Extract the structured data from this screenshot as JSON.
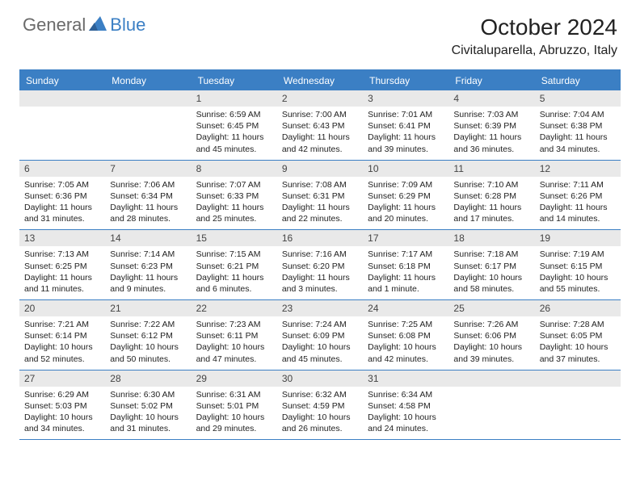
{
  "brand": {
    "part1": "General",
    "part2": "Blue"
  },
  "title": "October 2024",
  "location": "Civitaluparella, Abruzzo, Italy",
  "colors": {
    "accent": "#3b7fc4",
    "header_bg": "#3b7fc4",
    "header_text": "#ffffff",
    "daynum_bg": "#e9e9e9",
    "text": "#222222",
    "logo_gray": "#6a6a6a"
  },
  "day_names": [
    "Sunday",
    "Monday",
    "Tuesday",
    "Wednesday",
    "Thursday",
    "Friday",
    "Saturday"
  ],
  "weeks": [
    [
      {
        "n": "",
        "sr": "",
        "ss": "",
        "dl": ""
      },
      {
        "n": "",
        "sr": "",
        "ss": "",
        "dl": ""
      },
      {
        "n": "1",
        "sr": "Sunrise: 6:59 AM",
        "ss": "Sunset: 6:45 PM",
        "dl": "Daylight: 11 hours and 45 minutes."
      },
      {
        "n": "2",
        "sr": "Sunrise: 7:00 AM",
        "ss": "Sunset: 6:43 PM",
        "dl": "Daylight: 11 hours and 42 minutes."
      },
      {
        "n": "3",
        "sr": "Sunrise: 7:01 AM",
        "ss": "Sunset: 6:41 PM",
        "dl": "Daylight: 11 hours and 39 minutes."
      },
      {
        "n": "4",
        "sr": "Sunrise: 7:03 AM",
        "ss": "Sunset: 6:39 PM",
        "dl": "Daylight: 11 hours and 36 minutes."
      },
      {
        "n": "5",
        "sr": "Sunrise: 7:04 AM",
        "ss": "Sunset: 6:38 PM",
        "dl": "Daylight: 11 hours and 34 minutes."
      }
    ],
    [
      {
        "n": "6",
        "sr": "Sunrise: 7:05 AM",
        "ss": "Sunset: 6:36 PM",
        "dl": "Daylight: 11 hours and 31 minutes."
      },
      {
        "n": "7",
        "sr": "Sunrise: 7:06 AM",
        "ss": "Sunset: 6:34 PM",
        "dl": "Daylight: 11 hours and 28 minutes."
      },
      {
        "n": "8",
        "sr": "Sunrise: 7:07 AM",
        "ss": "Sunset: 6:33 PM",
        "dl": "Daylight: 11 hours and 25 minutes."
      },
      {
        "n": "9",
        "sr": "Sunrise: 7:08 AM",
        "ss": "Sunset: 6:31 PM",
        "dl": "Daylight: 11 hours and 22 minutes."
      },
      {
        "n": "10",
        "sr": "Sunrise: 7:09 AM",
        "ss": "Sunset: 6:29 PM",
        "dl": "Daylight: 11 hours and 20 minutes."
      },
      {
        "n": "11",
        "sr": "Sunrise: 7:10 AM",
        "ss": "Sunset: 6:28 PM",
        "dl": "Daylight: 11 hours and 17 minutes."
      },
      {
        "n": "12",
        "sr": "Sunrise: 7:11 AM",
        "ss": "Sunset: 6:26 PM",
        "dl": "Daylight: 11 hours and 14 minutes."
      }
    ],
    [
      {
        "n": "13",
        "sr": "Sunrise: 7:13 AM",
        "ss": "Sunset: 6:25 PM",
        "dl": "Daylight: 11 hours and 11 minutes."
      },
      {
        "n": "14",
        "sr": "Sunrise: 7:14 AM",
        "ss": "Sunset: 6:23 PM",
        "dl": "Daylight: 11 hours and 9 minutes."
      },
      {
        "n": "15",
        "sr": "Sunrise: 7:15 AM",
        "ss": "Sunset: 6:21 PM",
        "dl": "Daylight: 11 hours and 6 minutes."
      },
      {
        "n": "16",
        "sr": "Sunrise: 7:16 AM",
        "ss": "Sunset: 6:20 PM",
        "dl": "Daylight: 11 hours and 3 minutes."
      },
      {
        "n": "17",
        "sr": "Sunrise: 7:17 AM",
        "ss": "Sunset: 6:18 PM",
        "dl": "Daylight: 11 hours and 1 minute."
      },
      {
        "n": "18",
        "sr": "Sunrise: 7:18 AM",
        "ss": "Sunset: 6:17 PM",
        "dl": "Daylight: 10 hours and 58 minutes."
      },
      {
        "n": "19",
        "sr": "Sunrise: 7:19 AM",
        "ss": "Sunset: 6:15 PM",
        "dl": "Daylight: 10 hours and 55 minutes."
      }
    ],
    [
      {
        "n": "20",
        "sr": "Sunrise: 7:21 AM",
        "ss": "Sunset: 6:14 PM",
        "dl": "Daylight: 10 hours and 52 minutes."
      },
      {
        "n": "21",
        "sr": "Sunrise: 7:22 AM",
        "ss": "Sunset: 6:12 PM",
        "dl": "Daylight: 10 hours and 50 minutes."
      },
      {
        "n": "22",
        "sr": "Sunrise: 7:23 AM",
        "ss": "Sunset: 6:11 PM",
        "dl": "Daylight: 10 hours and 47 minutes."
      },
      {
        "n": "23",
        "sr": "Sunrise: 7:24 AM",
        "ss": "Sunset: 6:09 PM",
        "dl": "Daylight: 10 hours and 45 minutes."
      },
      {
        "n": "24",
        "sr": "Sunrise: 7:25 AM",
        "ss": "Sunset: 6:08 PM",
        "dl": "Daylight: 10 hours and 42 minutes."
      },
      {
        "n": "25",
        "sr": "Sunrise: 7:26 AM",
        "ss": "Sunset: 6:06 PM",
        "dl": "Daylight: 10 hours and 39 minutes."
      },
      {
        "n": "26",
        "sr": "Sunrise: 7:28 AM",
        "ss": "Sunset: 6:05 PM",
        "dl": "Daylight: 10 hours and 37 minutes."
      }
    ],
    [
      {
        "n": "27",
        "sr": "Sunrise: 6:29 AM",
        "ss": "Sunset: 5:03 PM",
        "dl": "Daylight: 10 hours and 34 minutes."
      },
      {
        "n": "28",
        "sr": "Sunrise: 6:30 AM",
        "ss": "Sunset: 5:02 PM",
        "dl": "Daylight: 10 hours and 31 minutes."
      },
      {
        "n": "29",
        "sr": "Sunrise: 6:31 AM",
        "ss": "Sunset: 5:01 PM",
        "dl": "Daylight: 10 hours and 29 minutes."
      },
      {
        "n": "30",
        "sr": "Sunrise: 6:32 AM",
        "ss": "Sunset: 4:59 PM",
        "dl": "Daylight: 10 hours and 26 minutes."
      },
      {
        "n": "31",
        "sr": "Sunrise: 6:34 AM",
        "ss": "Sunset: 4:58 PM",
        "dl": "Daylight: 10 hours and 24 minutes."
      },
      {
        "n": "",
        "sr": "",
        "ss": "",
        "dl": ""
      },
      {
        "n": "",
        "sr": "",
        "ss": "",
        "dl": ""
      }
    ]
  ]
}
